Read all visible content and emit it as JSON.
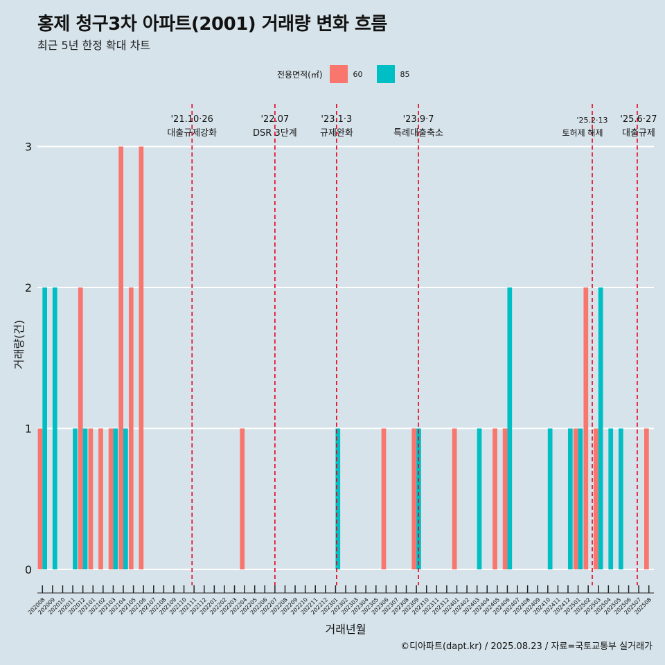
{
  "title": "홍제 청구3차 아파트(2001) 거래량 변화 흐름",
  "subtitle": "최근 5년 한정 확대 차트",
  "legend": {
    "title": "전용면적(㎡)",
    "items": [
      {
        "label": "60",
        "color": "#f8766d"
      },
      {
        "label": "85",
        "color": "#00bfc4"
      }
    ]
  },
  "caption": "©디아파트(dapt.kr) / 2025.08.23 / 자료=국토교통부 실거래가",
  "chart_data": {
    "type": "bar",
    "xlabel": "거래년월",
    "ylabel": "거래량(건)",
    "ylim": [
      0,
      3
    ],
    "yticks": [
      0,
      1,
      2,
      3
    ],
    "grid": true,
    "legend_position": "top",
    "categories": [
      "202008",
      "202009",
      "202010",
      "202011",
      "202012",
      "202101",
      "202102",
      "202103",
      "202104",
      "202105",
      "202106",
      "202107",
      "202108",
      "202109",
      "202110",
      "202111",
      "202112",
      "202201",
      "202202",
      "202203",
      "202204",
      "202205",
      "202206",
      "202207",
      "202208",
      "202209",
      "202210",
      "202211",
      "202212",
      "202301",
      "202302",
      "202303",
      "202304",
      "202305",
      "202306",
      "202307",
      "202308",
      "202309",
      "202310",
      "202311",
      "202312",
      "202401",
      "202402",
      "202403",
      "202404",
      "202405",
      "202406",
      "202407",
      "202408",
      "202409",
      "202410",
      "202411",
      "202412",
      "202501",
      "202502",
      "202503",
      "202504",
      "202505",
      "202506",
      "202507",
      "202508"
    ],
    "series": [
      {
        "name": "60",
        "color": "#f8766d",
        "values": [
          1,
          0,
          0,
          0,
          2,
          1,
          1,
          1,
          3,
          2,
          3,
          0,
          0,
          0,
          0,
          0,
          0,
          0,
          0,
          0,
          1,
          0,
          0,
          0,
          0,
          0,
          0,
          0,
          0,
          0,
          0,
          0,
          0,
          0,
          1,
          0,
          0,
          1,
          0,
          0,
          0,
          1,
          0,
          0,
          0,
          1,
          1,
          0,
          0,
          0,
          0,
          0,
          0,
          1,
          2,
          1,
          0,
          0,
          0,
          0,
          1
        ]
      },
      {
        "name": "85",
        "color": "#00bfc4",
        "values": [
          2,
          2,
          0,
          1,
          1,
          0,
          0,
          1,
          1,
          0,
          0,
          0,
          0,
          0,
          0,
          0,
          0,
          0,
          0,
          0,
          0,
          0,
          0,
          0,
          0,
          0,
          0,
          0,
          0,
          1,
          0,
          0,
          0,
          0,
          0,
          0,
          0,
          1,
          0,
          0,
          0,
          0,
          0,
          1,
          0,
          0,
          2,
          0,
          0,
          0,
          1,
          0,
          1,
          1,
          0,
          2,
          1,
          1,
          0,
          0,
          0
        ]
      }
    ],
    "events": [
      {
        "date": "'21.10·26",
        "label": "대출규제강화",
        "after": "202110",
        "frac": 0.8
      },
      {
        "date": "'22.07",
        "label": "DSR 3단계",
        "after": "202207",
        "frac": 0.0
      },
      {
        "date": "'23.1·3",
        "label": "규제완화",
        "after": "202301",
        "frac": 0.1
      },
      {
        "date": "'23.9·7",
        "label": "특례대출축소",
        "after": "202309",
        "frac": 0.2
      },
      {
        "date": "'25.2·13",
        "label": "토허제 해제",
        "after": "202502",
        "frac": 0.4
      },
      {
        "date": "'25.6·27",
        "label": "대출규제",
        "after": "202506",
        "frac": 0.85
      }
    ]
  }
}
